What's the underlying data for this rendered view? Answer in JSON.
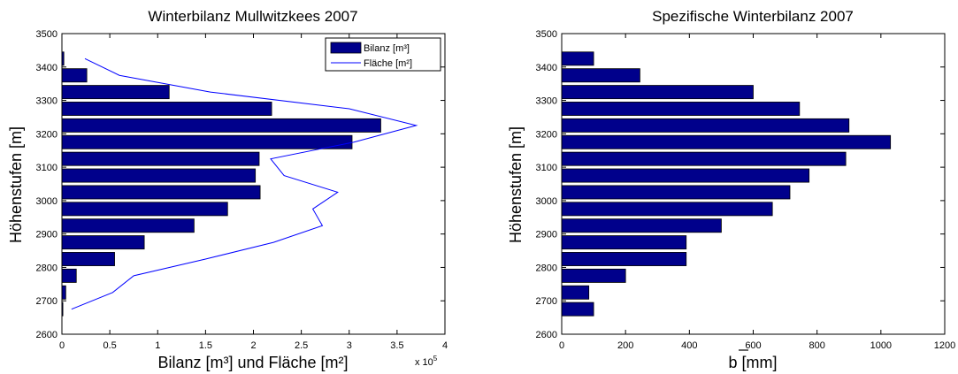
{
  "chart_data": [
    {
      "type": "bar",
      "orientation": "horizontal",
      "title": "Winterbilanz Mullwitzkees 2007",
      "xlabel": "Bilanz [m³] und Fläche [m²]",
      "ylabel": "Höhenstufen [m]",
      "x_multiplier": "x 10",
      "x_multiplier_exp": "5",
      "xlim": [
        0,
        4
      ],
      "ylim": [
        2600,
        3500
      ],
      "xticks": [
        "0",
        "0.5",
        "1",
        "1.5",
        "2",
        "2.5",
        "3",
        "3.5",
        "4"
      ],
      "yticks": [
        "2600",
        "2700",
        "2800",
        "2900",
        "3000",
        "3100",
        "3200",
        "3300",
        "3400",
        "3500"
      ],
      "categories": [
        2675,
        2725,
        2775,
        2825,
        2875,
        2925,
        2975,
        3025,
        3075,
        3125,
        3175,
        3225,
        3275,
        3325,
        3375,
        3425
      ],
      "series": [
        {
          "name": "Bilanz [m³]",
          "type": "bar",
          "color": "#00008b",
          "values": [
            0.01,
            0.04,
            0.15,
            0.55,
            0.86,
            1.38,
            1.73,
            2.07,
            2.02,
            2.06,
            3.03,
            3.33,
            2.19,
            1.12,
            0.26,
            0.02
          ]
        },
        {
          "name": "Fläche [m²]",
          "type": "line",
          "color": "#0000ff",
          "values": [
            0.1,
            0.53,
            0.75,
            1.5,
            2.21,
            2.72,
            2.62,
            2.88,
            2.32,
            2.18,
            3.05,
            3.7,
            3.0,
            1.55,
            0.6,
            0.24
          ]
        }
      ],
      "legend": "top-right",
      "grid": false
    },
    {
      "type": "bar",
      "orientation": "horizontal",
      "title": "Spezifische Winterbilanz 2007",
      "xlabel": "b [mm]",
      "ylabel": "Höhenstufen [m]",
      "xlim": [
        0,
        1200
      ],
      "ylim": [
        2600,
        3500
      ],
      "xticks": [
        "0",
        "200",
        "400",
        "600",
        "800",
        "1000",
        "1200"
      ],
      "yticks": [
        "2600",
        "2700",
        "2800",
        "2900",
        "3000",
        "3100",
        "3200",
        "3300",
        "3400",
        "3500"
      ],
      "categories": [
        2675,
        2725,
        2775,
        2825,
        2875,
        2925,
        2975,
        3025,
        3075,
        3125,
        3175,
        3225,
        3275,
        3325,
        3375,
        3425
      ],
      "series": [
        {
          "color": "#00008b",
          "values": [
            100,
            85,
            200,
            390,
            390,
            500,
            660,
            715,
            775,
            890,
            1030,
            900,
            745,
            600,
            245,
            100
          ]
        }
      ],
      "grid": false
    }
  ]
}
